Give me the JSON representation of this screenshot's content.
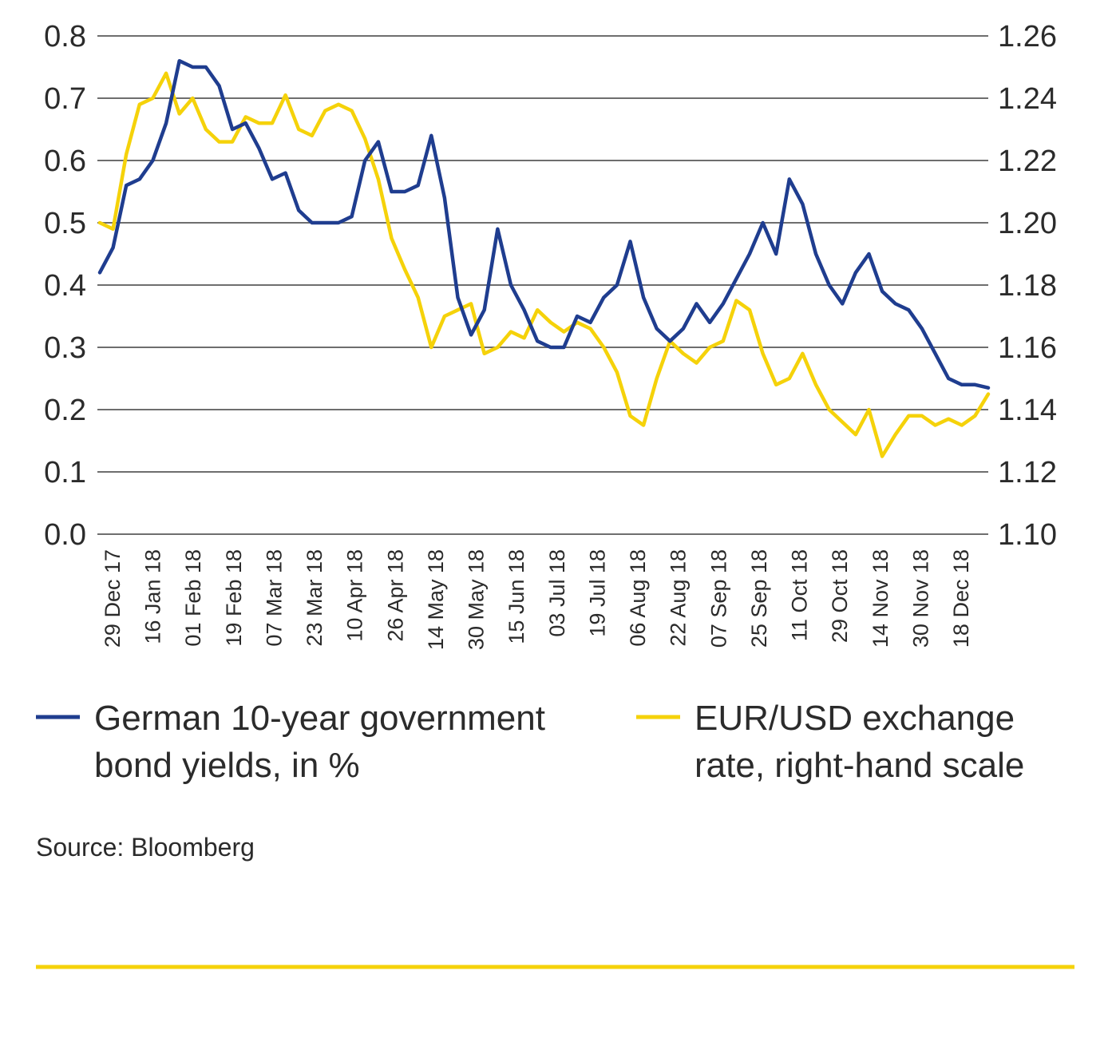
{
  "chart_data": {
    "type": "line",
    "title": "",
    "xlabel": "",
    "ylabel": "",
    "y_left": {
      "ylim": [
        0.0,
        0.8
      ],
      "ticks": [
        "0.0",
        "0.1",
        "0.2",
        "0.3",
        "0.4",
        "0.5",
        "0.6",
        "0.7",
        "0.8"
      ]
    },
    "y_right": {
      "ylim": [
        1.1,
        1.26
      ],
      "ticks": [
        "1.10",
        "1.12",
        "1.14",
        "1.16",
        "1.18",
        "1.20",
        "1.22",
        "1.24",
        "1.26"
      ]
    },
    "x_ticks": [
      "29 Dec 17",
      "16 Jan 18",
      "01 Feb 18",
      "19 Feb 18",
      "07 Mar 18",
      "23 Mar 18",
      "10 Apr 18",
      "26 Apr 18",
      "14 May 18",
      "30 May 18",
      "15 Jun 18",
      "03 Jul 18",
      "19 Jul 18",
      "06 Aug 18",
      "22 Aug 18",
      "07 Sep 18",
      "25 Sep 18",
      "11 Oct 18",
      "29 Oct 18",
      "14 Nov 18",
      "30 Nov 18",
      "18 Dec 18"
    ],
    "grid": true,
    "legend_position": "bottom",
    "series": [
      {
        "name": "German 10-year government bond yields, in %",
        "axis": "left",
        "color": "#1f3d8f",
        "values": [
          0.42,
          0.46,
          0.56,
          0.57,
          0.6,
          0.66,
          0.76,
          0.75,
          0.75,
          0.72,
          0.65,
          0.66,
          0.62,
          0.57,
          0.58,
          0.52,
          0.5,
          0.5,
          0.5,
          0.51,
          0.6,
          0.63,
          0.55,
          0.55,
          0.56,
          0.64,
          0.54,
          0.38,
          0.32,
          0.36,
          0.49,
          0.4,
          0.36,
          0.31,
          0.3,
          0.3,
          0.35,
          0.34,
          0.38,
          0.4,
          0.47,
          0.38,
          0.33,
          0.31,
          0.33,
          0.37,
          0.34,
          0.37,
          0.41,
          0.45,
          0.5,
          0.45,
          0.57,
          0.53,
          0.45,
          0.4,
          0.37,
          0.42,
          0.45,
          0.39,
          0.37,
          0.36,
          0.33,
          0.29,
          0.25,
          0.24,
          0.24,
          0.235
        ]
      },
      {
        "name": "EUR/USD exchange rate, right-hand scale",
        "axis": "right",
        "color": "#f5d20a",
        "values": [
          1.2,
          1.198,
          1.222,
          1.238,
          1.24,
          1.248,
          1.235,
          1.24,
          1.23,
          1.226,
          1.226,
          1.234,
          1.232,
          1.232,
          1.241,
          1.23,
          1.228,
          1.236,
          1.238,
          1.236,
          1.227,
          1.214,
          1.195,
          1.185,
          1.176,
          1.16,
          1.17,
          1.172,
          1.174,
          1.158,
          1.16,
          1.165,
          1.163,
          1.172,
          1.168,
          1.165,
          1.168,
          1.166,
          1.16,
          1.152,
          1.138,
          1.135,
          1.15,
          1.162,
          1.158,
          1.155,
          1.16,
          1.162,
          1.175,
          1.172,
          1.158,
          1.148,
          1.15,
          1.158,
          1.148,
          1.14,
          1.136,
          1.132,
          1.14,
          1.125,
          1.132,
          1.138,
          1.138,
          1.135,
          1.137,
          1.135,
          1.138,
          1.145
        ]
      }
    ]
  },
  "source": "Source: Bloomberg",
  "colors": {
    "grid": "#6e6e6e",
    "accent_rule": "#f5d20a"
  }
}
